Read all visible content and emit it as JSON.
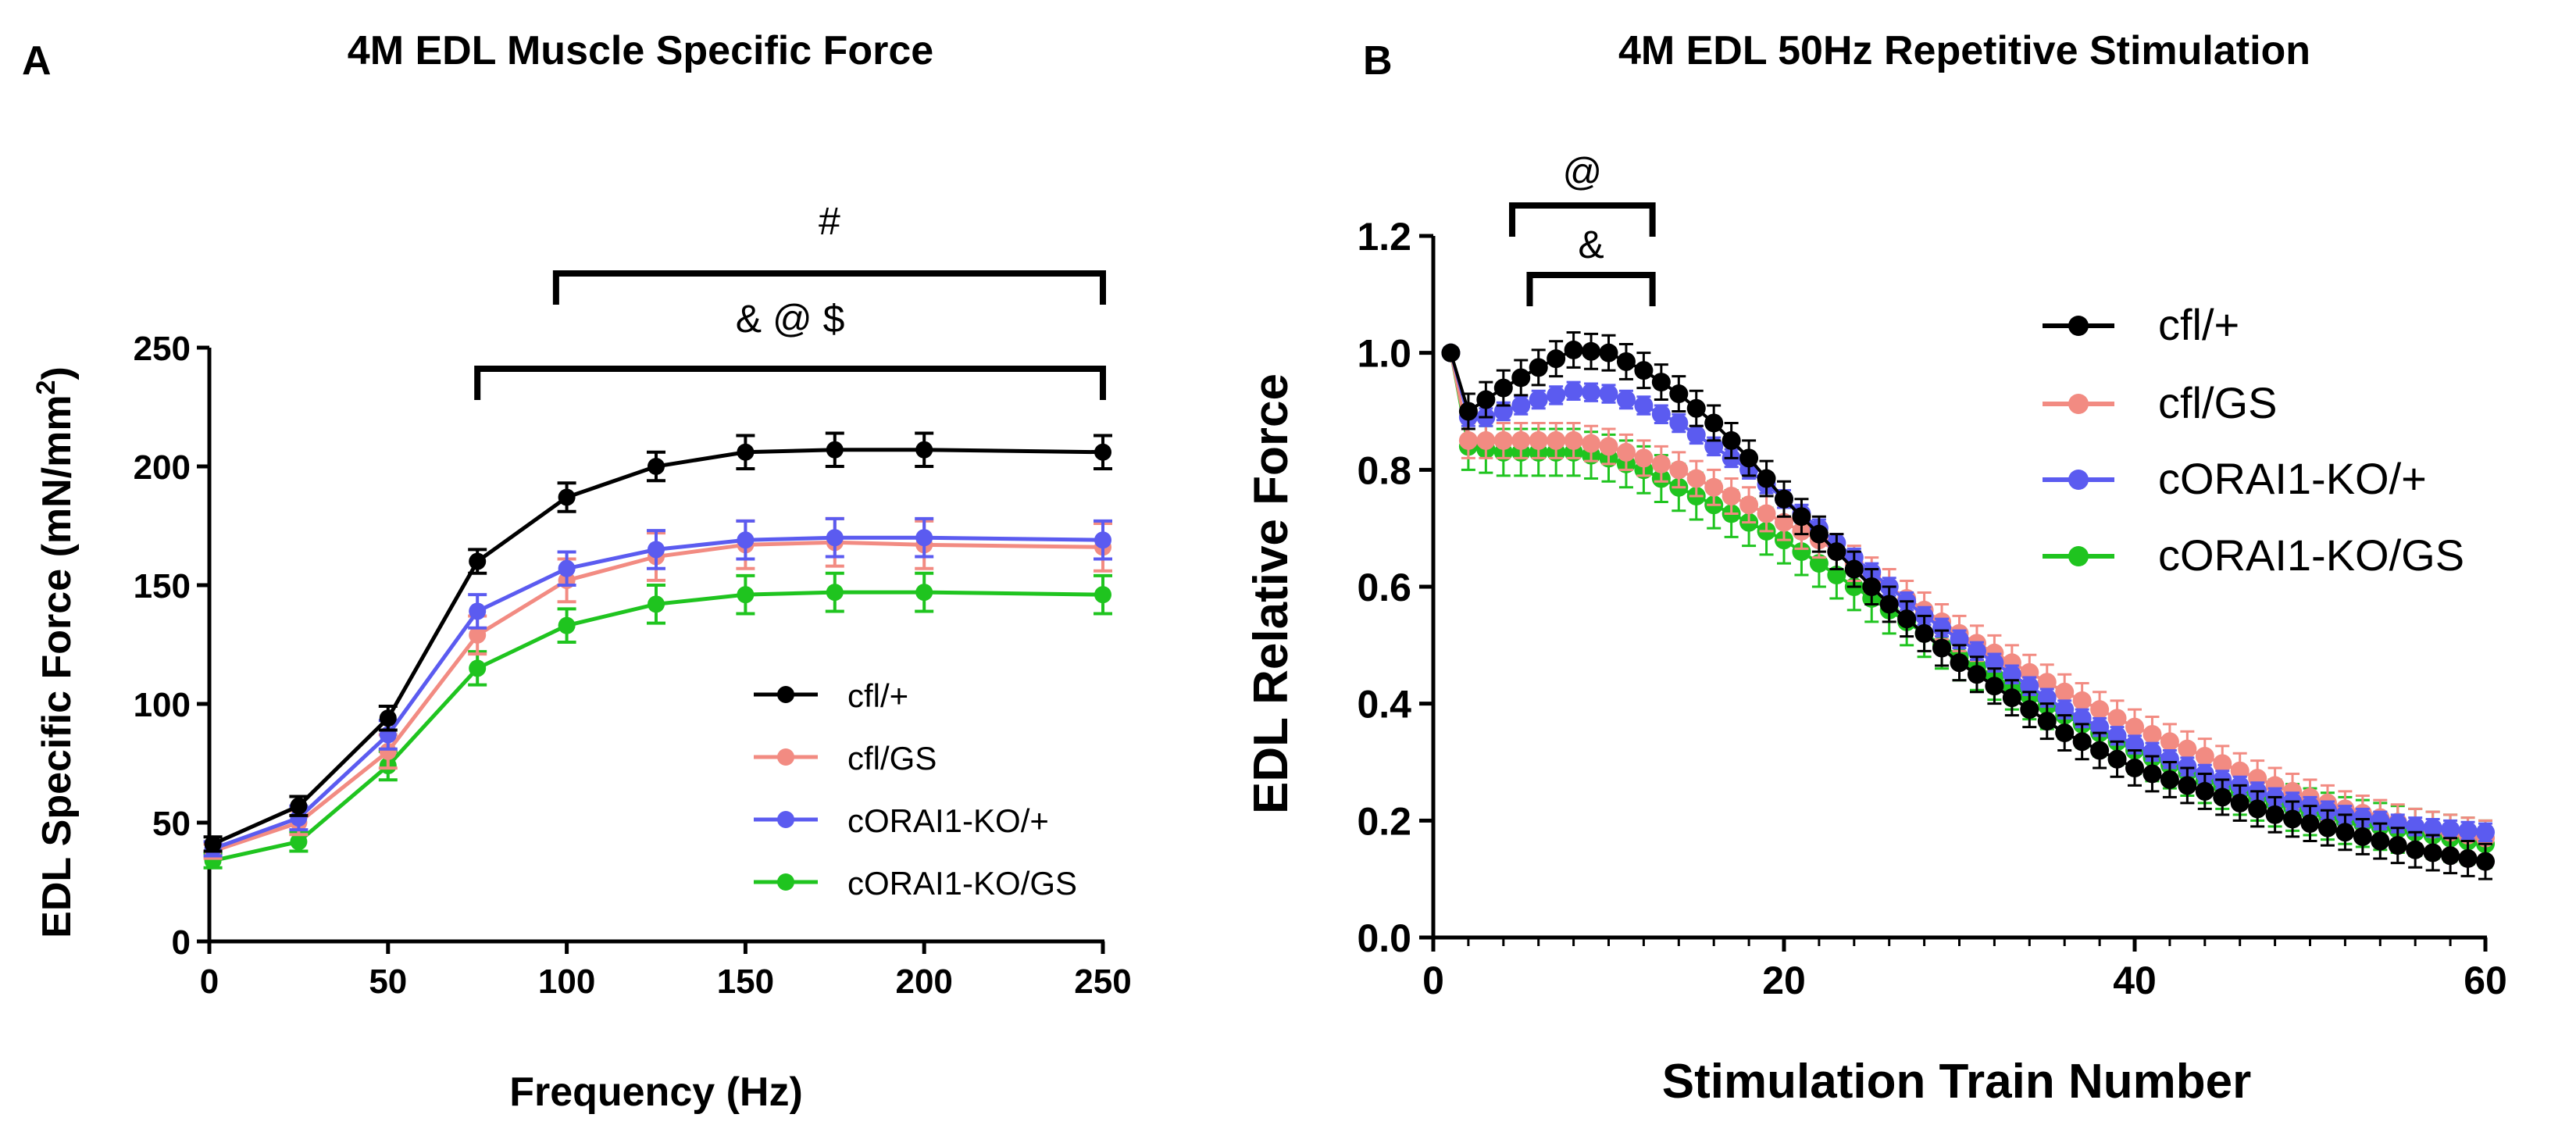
{
  "chart_data": [
    {
      "type": "line",
      "panel_label": "A",
      "title": "4M EDL Muscle Specific Force",
      "xlabel": "Frequency (Hz)",
      "ylabel_main": "EDL Specific Force (mN/mm",
      "ylabel_sup": "2",
      "ylabel_close": ")",
      "x": [
        1,
        25,
        50,
        75,
        100,
        125,
        150,
        175,
        200,
        250
      ],
      "xlim": [
        0,
        250
      ],
      "ylim": [
        0,
        250
      ],
      "xticks": [
        0,
        50,
        100,
        150,
        200,
        250
      ],
      "yticks": [
        0,
        50,
        100,
        150,
        200,
        250
      ],
      "series": [
        {
          "name": "cfl/+",
          "color": "#000000",
          "values": [
            41,
            57,
            94,
            160,
            187,
            200,
            206,
            207,
            207,
            206
          ],
          "errors": [
            3,
            4,
            5,
            5,
            6,
            6,
            7,
            7,
            7,
            7
          ]
        },
        {
          "name": "cfl/GS",
          "color": "#f28b82",
          "values": [
            38,
            50,
            80,
            129,
            152,
            162,
            167,
            168,
            167,
            166
          ],
          "errors": [
            3,
            5,
            7,
            8,
            9,
            10,
            10,
            10,
            10,
            10
          ]
        },
        {
          "name": "cORAI1-KO/+",
          "color": "#5b5bf0",
          "values": [
            39,
            52,
            87,
            139,
            157,
            165,
            169,
            170,
            170,
            169
          ],
          "errors": [
            3,
            5,
            6,
            7,
            7,
            8,
            8,
            8,
            8,
            8
          ]
        },
        {
          "name": "cORAI1-KO/GS",
          "color": "#1fc41f",
          "values": [
            34,
            42,
            74,
            115,
            133,
            142,
            146,
            147,
            147,
            146
          ],
          "errors": [
            3,
            4,
            6,
            7,
            7,
            8,
            8,
            8,
            8,
            8
          ]
        }
      ],
      "annotations": [
        {
          "text": "#",
          "x_start": 97,
          "x_end": 250
        },
        {
          "text": "& @ $",
          "x_start": 75,
          "x_end": 250
        }
      ]
    },
    {
      "type": "line",
      "panel_label": "B",
      "title": "4M EDL 50Hz Repetitive Stimulation",
      "xlabel": "Stimulation Train Number",
      "ylabel": "EDL Relative Force",
      "xlim": [
        0,
        60
      ],
      "ylim": [
        0,
        1.2
      ],
      "xticks": [
        0,
        20,
        40,
        60
      ],
      "yticks": [
        0.0,
        0.2,
        0.4,
        0.6,
        0.8,
        1.0,
        1.2
      ],
      "ytick_labels": [
        "0.0",
        "0.2",
        "0.4",
        "0.6",
        "0.8",
        "1.0",
        "1.2"
      ],
      "x_start": 1,
      "x_end": 60,
      "series": [
        {
          "name": "cfl/+",
          "color": "#000000",
          "anchors_x": [
            1,
            2,
            3,
            4,
            6,
            8,
            10,
            12,
            14,
            16,
            18,
            20,
            22,
            24,
            26,
            28,
            30,
            33,
            36,
            40,
            44,
            48,
            52,
            56,
            60
          ],
          "anchors_y": [
            1.0,
            0.9,
            0.92,
            0.94,
            0.975,
            1.005,
            1.0,
            0.97,
            0.93,
            0.88,
            0.82,
            0.75,
            0.69,
            0.63,
            0.57,
            0.52,
            0.47,
            0.41,
            0.35,
            0.29,
            0.25,
            0.21,
            0.18,
            0.15,
            0.13
          ],
          "error": 0.03
        },
        {
          "name": "cfl/GS",
          "color": "#f28b82",
          "anchors_x": [
            1,
            2,
            4,
            6,
            8,
            10,
            12,
            14,
            16,
            18,
            20,
            22,
            24,
            26,
            28,
            30,
            33,
            36,
            40,
            44,
            48,
            52,
            56,
            60
          ],
          "anchors_y": [
            1.0,
            0.85,
            0.85,
            0.85,
            0.85,
            0.84,
            0.82,
            0.8,
            0.77,
            0.74,
            0.71,
            0.68,
            0.64,
            0.6,
            0.56,
            0.52,
            0.47,
            0.42,
            0.36,
            0.31,
            0.26,
            0.22,
            0.19,
            0.17
          ],
          "error": 0.03
        },
        {
          "name": "cORAI1-KO/+",
          "color": "#5b5bf0",
          "anchors_x": [
            1,
            2,
            3,
            4,
            6,
            8,
            10,
            12,
            14,
            16,
            18,
            20,
            22,
            24,
            26,
            28,
            30,
            33,
            36,
            40,
            44,
            48,
            52,
            56,
            60
          ],
          "anchors_y": [
            1.0,
            0.89,
            0.89,
            0.9,
            0.92,
            0.935,
            0.93,
            0.91,
            0.88,
            0.84,
            0.8,
            0.75,
            0.7,
            0.65,
            0.6,
            0.55,
            0.51,
            0.45,
            0.39,
            0.33,
            0.28,
            0.24,
            0.21,
            0.19,
            0.18
          ],
          "error": 0.015
        },
        {
          "name": "cORAI1-KO/GS",
          "color": "#1fc41f",
          "anchors_x": [
            1,
            2,
            4,
            6,
            8,
            10,
            12,
            14,
            16,
            18,
            20,
            22,
            24,
            26,
            28,
            30,
            33,
            36,
            40,
            44,
            48,
            52,
            56,
            60
          ],
          "anchors_y": [
            1.0,
            0.84,
            0.83,
            0.83,
            0.83,
            0.82,
            0.8,
            0.77,
            0.74,
            0.71,
            0.68,
            0.64,
            0.6,
            0.56,
            0.52,
            0.48,
            0.43,
            0.38,
            0.32,
            0.27,
            0.23,
            0.2,
            0.18,
            0.16
          ],
          "error": 0.04
        }
      ],
      "annotations": [
        {
          "text": "@",
          "x_start": 4.5,
          "x_end": 12.5
        },
        {
          "text": "&",
          "x_start": 5.5,
          "x_end": 12.5
        }
      ]
    }
  ]
}
